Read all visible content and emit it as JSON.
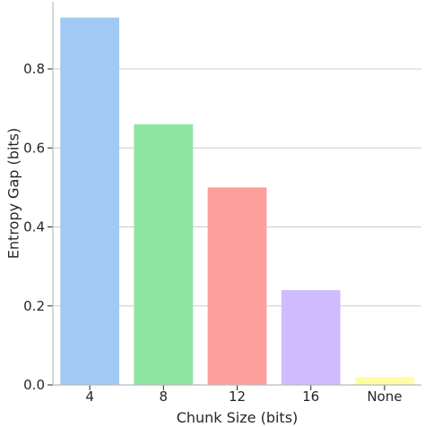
{
  "chart_data": {
    "type": "bar",
    "title": "",
    "xlabel": "Chunk Size (bits)",
    "ylabel": "Entropy Gap (bits)",
    "categories": [
      "4",
      "8",
      "12",
      "16",
      "None"
    ],
    "values": [
      0.93,
      0.66,
      0.5,
      0.24,
      0.02
    ],
    "colors": [
      "#a1c9f4",
      "#8de5a1",
      "#ff9f9b",
      "#d0bbff",
      "#fffea3"
    ],
    "ylim": [
      0,
      0.97
    ],
    "yticks": [
      0.0,
      0.2,
      0.4,
      0.6,
      0.8
    ],
    "ytick_labels": [
      "0.0",
      "0.2",
      "0.4",
      "0.6",
      "0.8"
    ],
    "grid": "horizontal",
    "legend": "none"
  }
}
